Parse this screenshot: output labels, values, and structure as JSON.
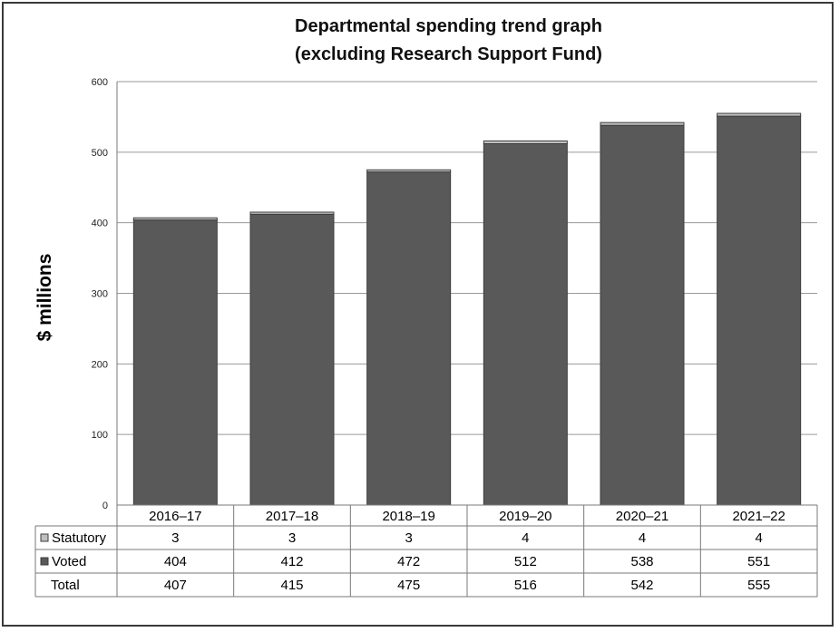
{
  "chart_data": {
    "type": "bar",
    "stacked": true,
    "title": "Departmental spending trend graph",
    "subtitle": "(excluding Research Support Fund)",
    "ylabel": "$ millions",
    "xlabel": "",
    "ylim": [
      0,
      600
    ],
    "yticks": [
      0,
      100,
      200,
      300,
      400,
      500,
      600
    ],
    "grid": true,
    "legend": "table-below",
    "categories": [
      "2016–17",
      "2017–18",
      "2018–19",
      "2019–20",
      "2020–21",
      "2021–22"
    ],
    "series": [
      {
        "name": "Statutory",
        "values": [
          3,
          3,
          3,
          4,
          4,
          4
        ],
        "color": "#bfbfbf"
      },
      {
        "name": "Voted",
        "values": [
          404,
          412,
          472,
          512,
          538,
          551
        ],
        "color": "#595959"
      }
    ],
    "totals_label": "Total",
    "totals": [
      407,
      415,
      475,
      516,
      542,
      555
    ]
  }
}
